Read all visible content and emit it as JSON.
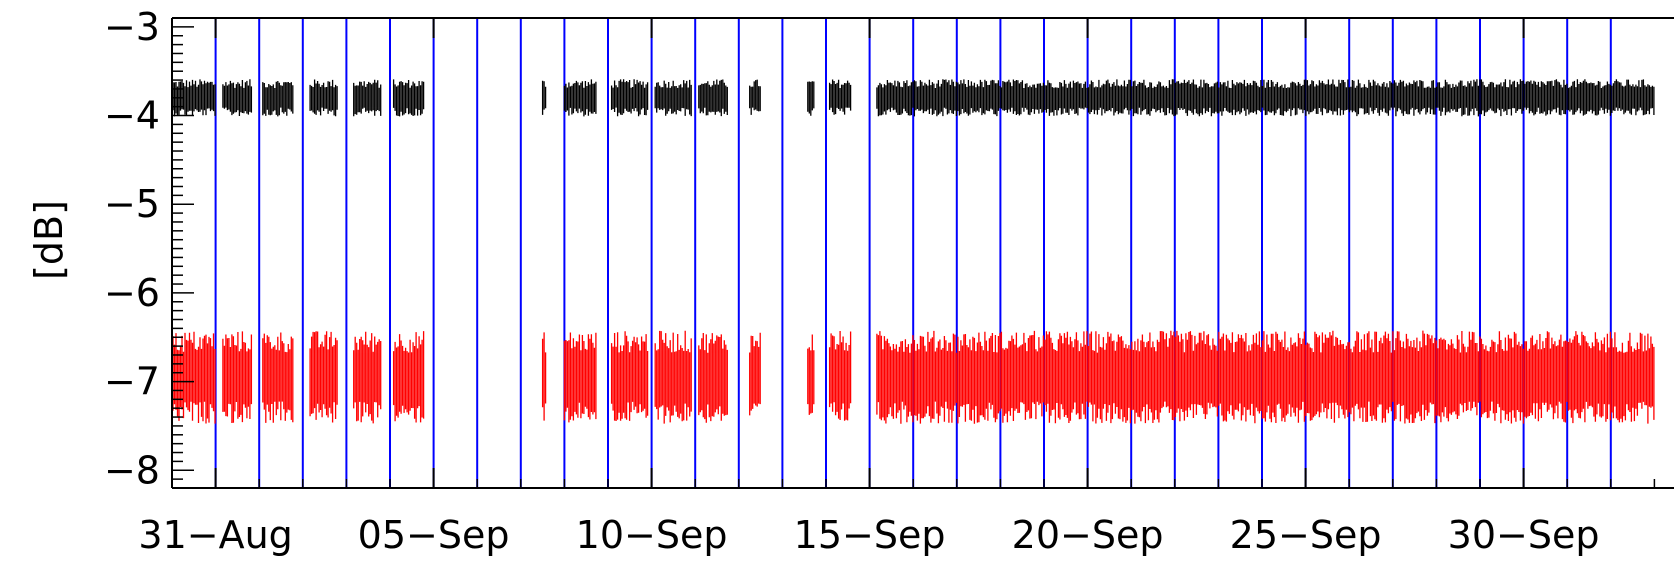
{
  "chart_data": {
    "type": "scatter",
    "title": "",
    "xlabel": "",
    "ylabel": "[dB]",
    "x_range": [
      "2023-08-30",
      "2023-10-03"
    ],
    "ylim": [
      -8.2,
      -2.9
    ],
    "y_ticks": [
      "-3",
      "-4",
      "-5",
      "-6",
      "-7",
      "-8"
    ],
    "x_ticks": [
      {
        "date": "2023-08-31",
        "label": "31-Aug"
      },
      {
        "date": "2023-09-05",
        "label": "05-Sep"
      },
      {
        "date": "2023-09-10",
        "label": "10-Sep"
      },
      {
        "date": "2023-09-15",
        "label": "15-Sep"
      },
      {
        "date": "2023-09-20",
        "label": "20-Sep"
      },
      {
        "date": "2023-09-25",
        "label": "25-Sep"
      },
      {
        "date": "2023-09-30",
        "label": "30-Sep"
      }
    ],
    "day_markers": "vertical blue line at midnight of every day",
    "series": [
      {
        "color": "#000000",
        "center": -3.8,
        "spread": [
          -4.0,
          -3.6
        ],
        "data_intervals": [
          [
            "2023-08-30T00:00",
            "2023-08-31T00:00"
          ],
          [
            "2023-08-31T04:00",
            "2023-08-31T20:00"
          ],
          [
            "2023-09-01T02:00",
            "2023-09-01T19:00"
          ],
          [
            "2023-09-02T04:00",
            "2023-09-02T19:00"
          ],
          [
            "2023-09-03T04:00",
            "2023-09-03T19:00"
          ],
          [
            "2023-09-04T02:00",
            "2023-09-04T19:00"
          ],
          [
            "2023-09-07T12:00",
            "2023-09-07T14:00"
          ],
          [
            "2023-09-08T00:00",
            "2023-09-08T18:00"
          ],
          [
            "2023-09-09T02:00",
            "2023-09-09T22:00"
          ],
          [
            "2023-09-10T02:00",
            "2023-09-10T22:00"
          ],
          [
            "2023-09-11T02:00",
            "2023-09-11T18:00"
          ],
          [
            "2023-09-12T06:00",
            "2023-09-12T12:00"
          ],
          [
            "2023-09-13T14:00",
            "2023-09-13T18:00"
          ],
          [
            "2023-09-14T02:00",
            "2023-09-14T14:00"
          ],
          [
            "2023-09-15T04:00",
            "2023-10-03T00:00"
          ]
        ]
      },
      {
        "color": "#ff0000",
        "center": -6.95,
        "spread": [
          -7.5,
          -6.5
        ],
        "data_intervals": [
          [
            "2023-08-30T00:00",
            "2023-08-31T00:00"
          ],
          [
            "2023-08-31T04:00",
            "2023-08-31T20:00"
          ],
          [
            "2023-09-01T02:00",
            "2023-09-01T19:00"
          ],
          [
            "2023-09-02T04:00",
            "2023-09-02T19:00"
          ],
          [
            "2023-09-03T04:00",
            "2023-09-03T19:00"
          ],
          [
            "2023-09-04T02:00",
            "2023-09-04T19:00"
          ],
          [
            "2023-09-07T12:00",
            "2023-09-07T14:00"
          ],
          [
            "2023-09-08T00:00",
            "2023-09-08T18:00"
          ],
          [
            "2023-09-09T02:00",
            "2023-09-09T22:00"
          ],
          [
            "2023-09-10T02:00",
            "2023-09-10T22:00"
          ],
          [
            "2023-09-11T02:00",
            "2023-09-11T18:00"
          ],
          [
            "2023-09-12T06:00",
            "2023-09-12T12:00"
          ],
          [
            "2023-09-13T14:00",
            "2023-09-13T18:00"
          ],
          [
            "2023-09-14T02:00",
            "2023-09-14T14:00"
          ],
          [
            "2023-09-15T04:00",
            "2023-10-03T00:00"
          ]
        ]
      }
    ],
    "colors": {
      "day_line": "#0000ff",
      "axis": "#000000",
      "background": "#ffffff"
    },
    "grid": false,
    "legend": "none"
  }
}
